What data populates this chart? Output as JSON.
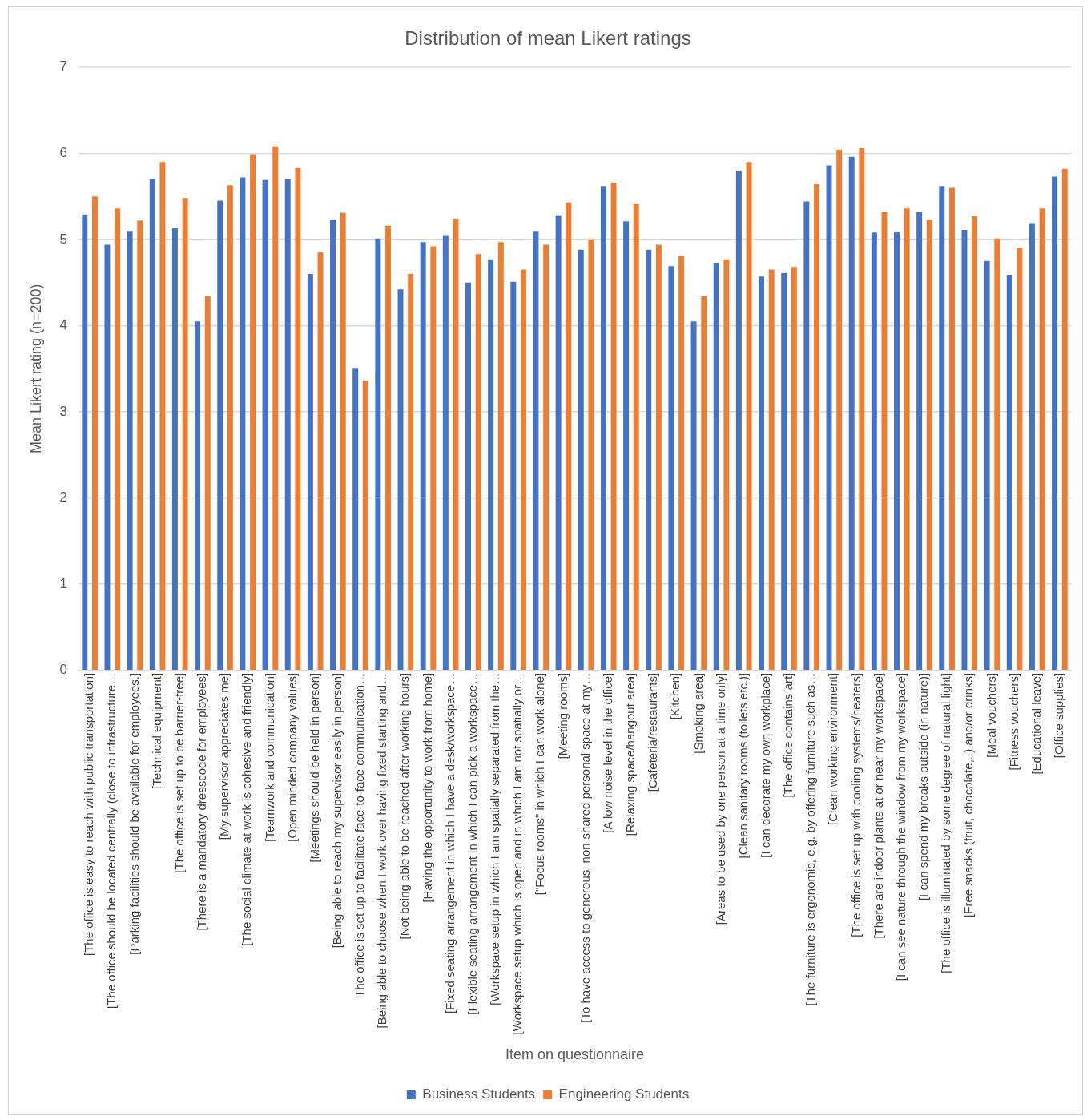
{
  "chart_data": {
    "type": "bar",
    "title": "Distribution of mean Likert ratings",
    "xlabel": "Item on questionnaire",
    "ylabel": "Mean Likert rating (n=200)",
    "categories": [
      "[The office is easy to reach with public transportation]",
      "[The office should be located centrally (close to infrastructure…",
      "[Parking facilities should be available for employees.]",
      "[Technical equipment]",
      "[The office is set up to be barrier-free]",
      "[There is a mandatory dresscode for employees]",
      "[My supervisor appreciates me]",
      "[The social climate at work is cohesive and friendly]",
      "[Teamwork and communication]",
      "[Open minded company values]",
      "[Meetings should be held in person]",
      "[Being able to reach my supervisor easily in person]",
      "The office is set up to facilitate face-to-face communication…",
      "[Being able to choose when I work over having fixed starting and…",
      "[Not being able to be reached after working hours]",
      "[Having the opportunity to work from home]",
      "[Fixed seating arrangement in which I have a desk/workspace…",
      "[Flexible seating arrangement in which I can pick a workspace…",
      "[Workspace setup in which I am spatially separated from the…",
      "[Workspace setup which is open and in which I am not spatially or…",
      "[\"Focus rooms\" in which I can work alone]",
      "[Meeting rooms]",
      "[To have access to generous, non-shared personal space at my…",
      "[A low noise level in the office]",
      "[Relaxing space/hangout area]",
      "[Cafeteria/restaurants]",
      "[Kitchen]",
      "[Smoking area]",
      "[Areas to be used by one person at a time only]",
      "[Clean sanitary rooms (toilets etc.)]",
      "[I can decorate my own workplace]",
      "[The office contains art]",
      "[The furniture is ergonomic, e.g. by offering furniture such as…",
      "[Clean working environment]",
      "[The office is set up with cooling systems/heaters]",
      "[There are indoor plants at or near my workspace]",
      "[I can see nature through the window from my workspace]",
      "[I can spend my breaks outside (in nature)]",
      "[The office is illuminated by some degree of natural light]",
      "[Free snacks (fruit, chocolate,..) and/or drinks]",
      "[Meal vouchers]",
      "[Fitness vouchers]",
      "[Educational leave]",
      "[Office supplies]"
    ],
    "series": [
      {
        "name": "Business Students",
        "color": "#4472c4",
        "values": [
          5.29,
          4.94,
          5.1,
          5.7,
          5.13,
          4.05,
          5.45,
          5.72,
          5.69,
          5.7,
          4.6,
          5.23,
          3.51,
          5.01,
          4.42,
          4.97,
          5.05,
          4.5,
          4.77,
          4.51,
          5.1,
          5.28,
          4.88,
          5.62,
          5.21,
          4.88,
          4.69,
          4.05,
          4.73,
          5.8,
          4.57,
          4.61,
          5.44,
          5.86,
          5.96,
          5.08,
          5.09,
          5.32,
          5.62,
          5.11,
          4.75,
          4.59,
          5.19,
          5.73
        ]
      },
      {
        "name": "Engineering Students",
        "color": "#ed7d31",
        "values": [
          5.5,
          5.36,
          5.22,
          5.9,
          5.48,
          4.34,
          5.63,
          5.99,
          6.08,
          5.83,
          4.85,
          5.31,
          3.36,
          5.16,
          4.6,
          4.92,
          5.24,
          4.83,
          4.97,
          4.65,
          4.94,
          5.43,
          5.0,
          5.66,
          5.41,
          4.94,
          4.81,
          4.34,
          4.77,
          5.9,
          4.65,
          4.68,
          5.64,
          6.04,
          6.06,
          5.32,
          5.36,
          5.23,
          5.6,
          5.27,
          5.01,
          4.9,
          5.36,
          5.82
        ]
      }
    ],
    "ylim": [
      0,
      7
    ],
    "yticks": [
      0,
      1,
      2,
      3,
      4,
      5,
      6,
      7
    ],
    "grid": "y",
    "legend": "bottom"
  }
}
